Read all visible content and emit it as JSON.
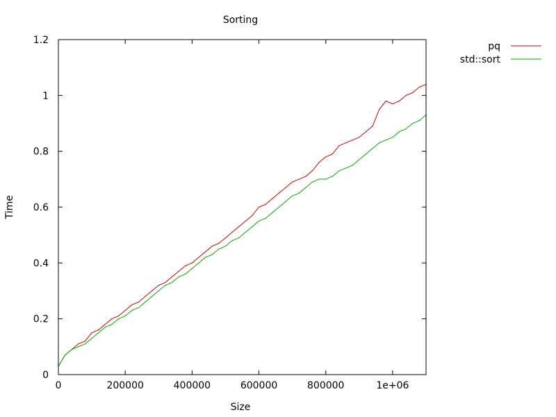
{
  "chart_data": {
    "type": "line",
    "title": "Sorting",
    "xlabel": "Size",
    "ylabel": "Time",
    "xlim": [
      0,
      1100000
    ],
    "ylim": [
      0,
      1.2
    ],
    "xticks": [
      {
        "value": 0,
        "label": "0"
      },
      {
        "value": 200000,
        "label": "200000"
      },
      {
        "value": 400000,
        "label": "400000"
      },
      {
        "value": 600000,
        "label": "600000"
      },
      {
        "value": 800000,
        "label": "800000"
      },
      {
        "value": 1000000,
        "label": "1e+06"
      }
    ],
    "yticks": [
      {
        "value": 0,
        "label": "0"
      },
      {
        "value": 0.2,
        "label": "0.2"
      },
      {
        "value": 0.4,
        "label": "0.4"
      },
      {
        "value": 0.6,
        "label": "0.6"
      },
      {
        "value": 0.8,
        "label": "0.8"
      },
      {
        "value": 1.0,
        "label": "1"
      },
      {
        "value": 1.2,
        "label": "1.2"
      }
    ],
    "grid": false,
    "legend_position": "outside-top-right",
    "series": [
      {
        "name": "pq",
        "color": "#cc0000",
        "x": [
          0,
          20000,
          40000,
          60000,
          80000,
          100000,
          120000,
          140000,
          160000,
          180000,
          200000,
          220000,
          240000,
          260000,
          280000,
          300000,
          320000,
          340000,
          360000,
          380000,
          400000,
          420000,
          440000,
          460000,
          480000,
          500000,
          520000,
          540000,
          560000,
          580000,
          600000,
          620000,
          640000,
          660000,
          680000,
          700000,
          720000,
          740000,
          760000,
          780000,
          800000,
          820000,
          840000,
          860000,
          880000,
          900000,
          920000,
          940000,
          960000,
          980000,
          1000000,
          1020000,
          1040000,
          1060000,
          1080000,
          1100000
        ],
        "y": [
          0.03,
          0.07,
          0.09,
          0.11,
          0.12,
          0.15,
          0.16,
          0.18,
          0.2,
          0.21,
          0.23,
          0.25,
          0.26,
          0.28,
          0.3,
          0.32,
          0.33,
          0.35,
          0.37,
          0.39,
          0.4,
          0.42,
          0.44,
          0.46,
          0.47,
          0.49,
          0.51,
          0.53,
          0.55,
          0.57,
          0.6,
          0.61,
          0.63,
          0.65,
          0.67,
          0.69,
          0.7,
          0.71,
          0.73,
          0.76,
          0.78,
          0.79,
          0.82,
          0.83,
          0.84,
          0.85,
          0.87,
          0.89,
          0.95,
          0.98,
          0.97,
          0.98,
          1.0,
          1.01,
          1.03,
          1.04
        ]
      },
      {
        "name": "std::sort",
        "color": "#00aa00",
        "x": [
          0,
          20000,
          40000,
          60000,
          80000,
          100000,
          120000,
          140000,
          160000,
          180000,
          200000,
          220000,
          240000,
          260000,
          280000,
          300000,
          320000,
          340000,
          360000,
          380000,
          400000,
          420000,
          440000,
          460000,
          480000,
          500000,
          520000,
          540000,
          560000,
          580000,
          600000,
          620000,
          640000,
          660000,
          680000,
          700000,
          720000,
          740000,
          760000,
          780000,
          800000,
          820000,
          840000,
          860000,
          880000,
          900000,
          920000,
          940000,
          960000,
          980000,
          1000000,
          1020000,
          1040000,
          1060000,
          1080000,
          1100000
        ],
        "y": [
          0.03,
          0.07,
          0.09,
          0.1,
          0.11,
          0.13,
          0.15,
          0.17,
          0.18,
          0.2,
          0.21,
          0.23,
          0.24,
          0.26,
          0.28,
          0.3,
          0.32,
          0.33,
          0.35,
          0.36,
          0.38,
          0.4,
          0.42,
          0.43,
          0.45,
          0.46,
          0.48,
          0.49,
          0.51,
          0.53,
          0.55,
          0.56,
          0.58,
          0.6,
          0.62,
          0.64,
          0.65,
          0.67,
          0.69,
          0.7,
          0.7,
          0.71,
          0.73,
          0.74,
          0.75,
          0.77,
          0.79,
          0.81,
          0.83,
          0.84,
          0.85,
          0.87,
          0.88,
          0.9,
          0.91,
          0.93
        ]
      }
    ]
  }
}
